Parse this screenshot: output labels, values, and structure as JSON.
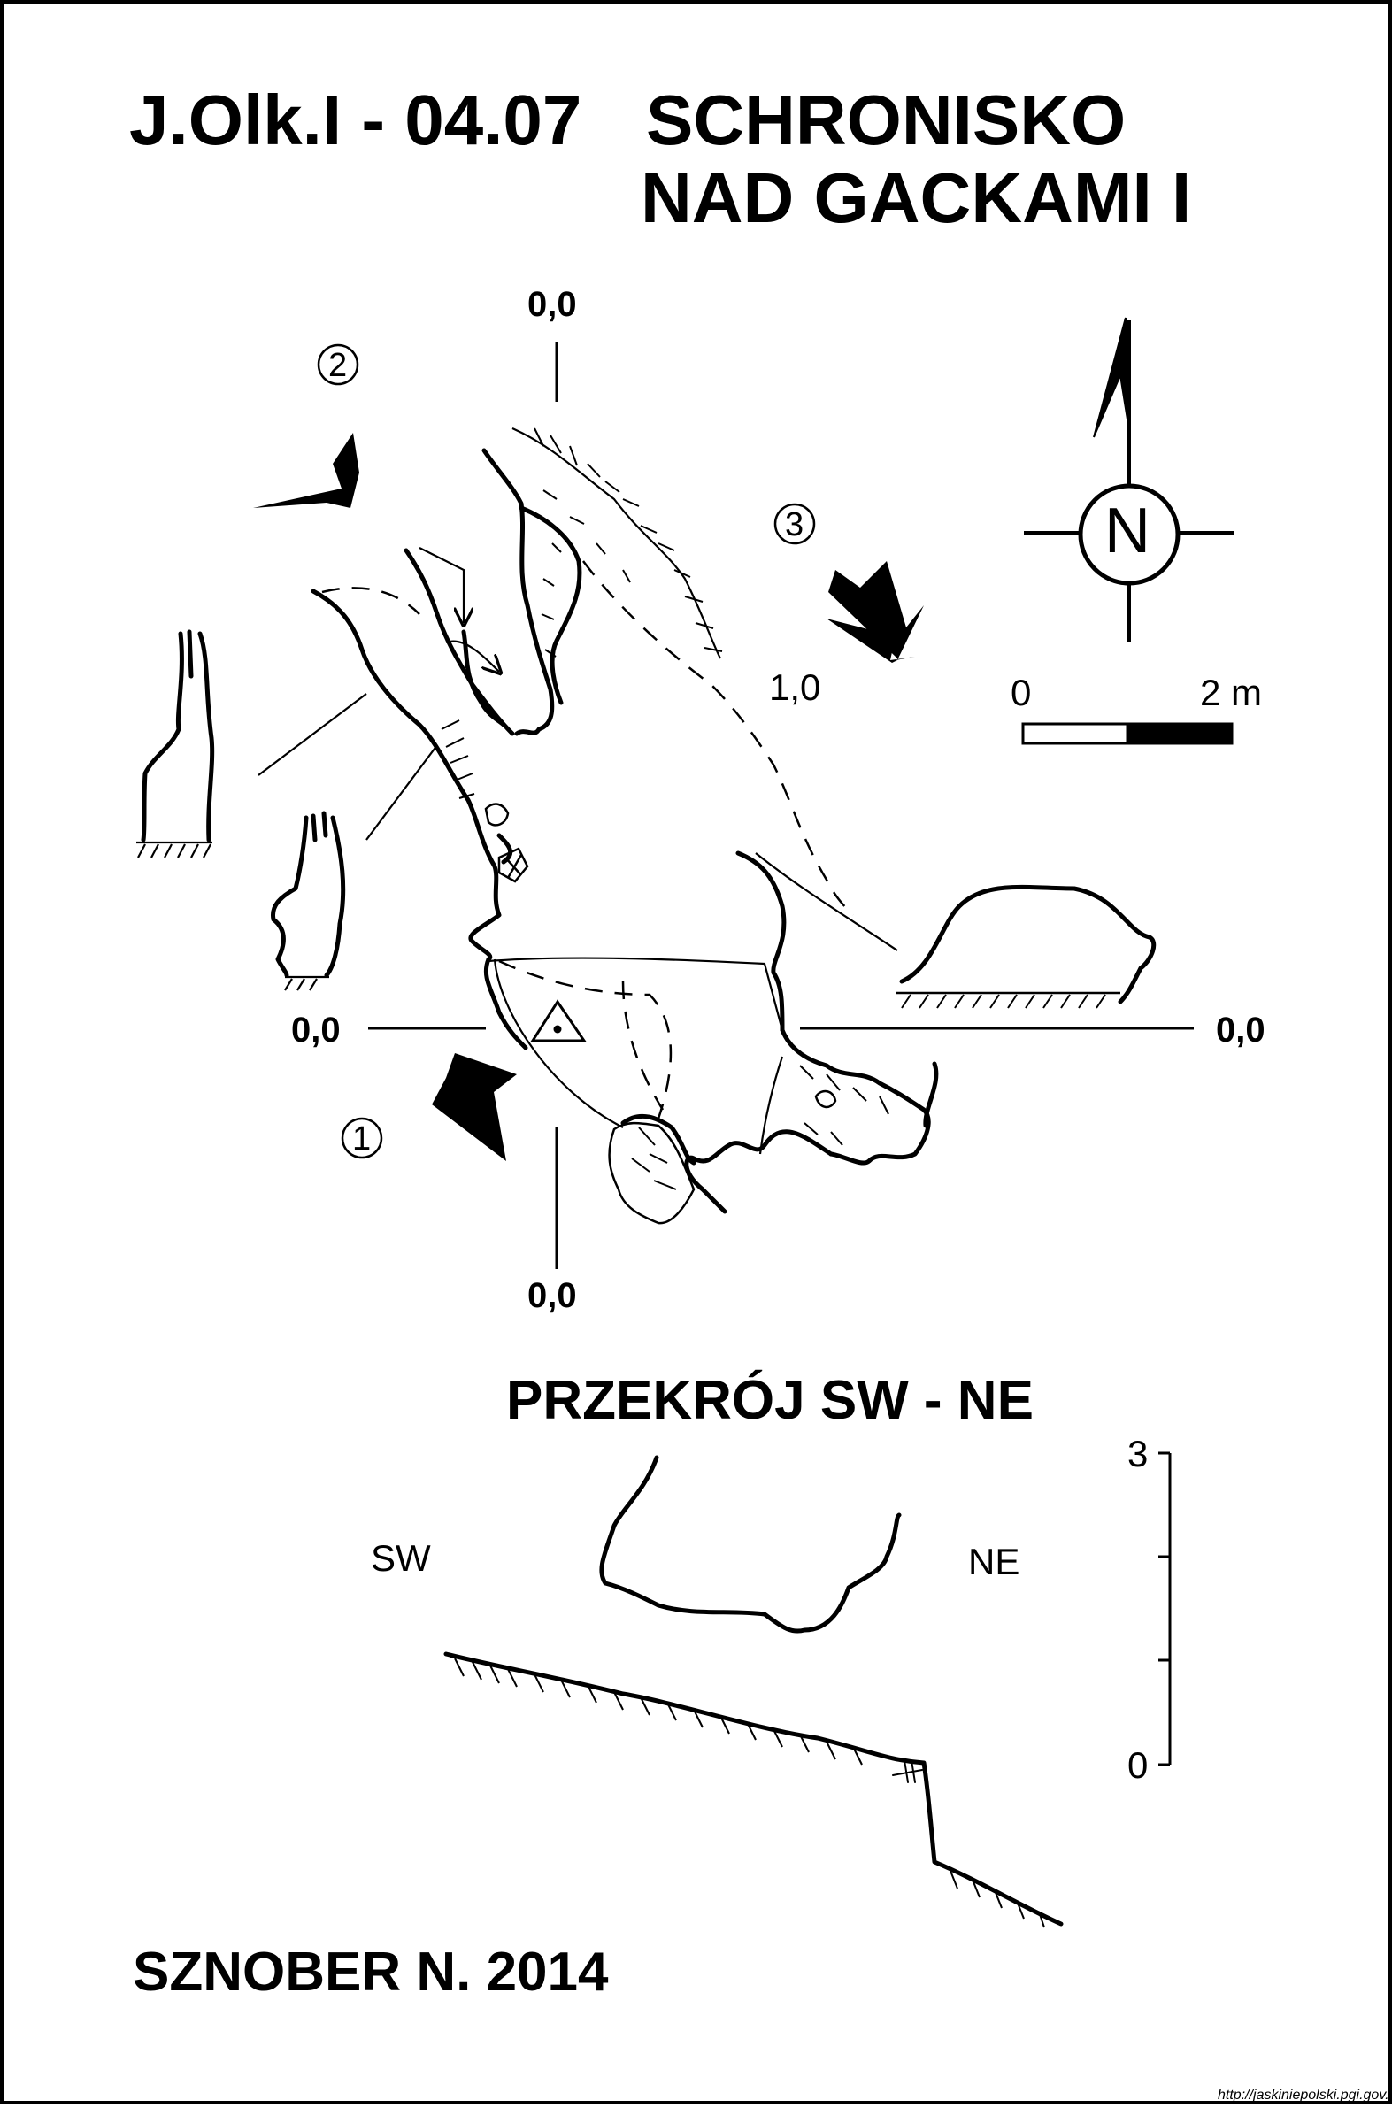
{
  "header": {
    "code": "J.Olk.I - 04.07",
    "name_line1": "SCHRONISKO",
    "name_line2": "NAD GACKAMI I"
  },
  "plan": {
    "coord_labels": {
      "top": "0,0",
      "bottom": "0,0",
      "left": "0,0",
      "right": "0,0",
      "depth_mark": "1,0"
    },
    "section_markers": [
      "1",
      "2",
      "3"
    ],
    "north_label": "N",
    "scale_bar": {
      "min_label": "0",
      "max_label": "2 m"
    }
  },
  "section": {
    "title": "PRZEKRÓJ SW - NE",
    "left_label": "SW",
    "right_label": "NE",
    "scale_max": "3",
    "scale_min": "0"
  },
  "footer": {
    "author": "SZNOBER N.  2014",
    "source": "http://jaskiniepolski.pgi.gov.pl"
  }
}
